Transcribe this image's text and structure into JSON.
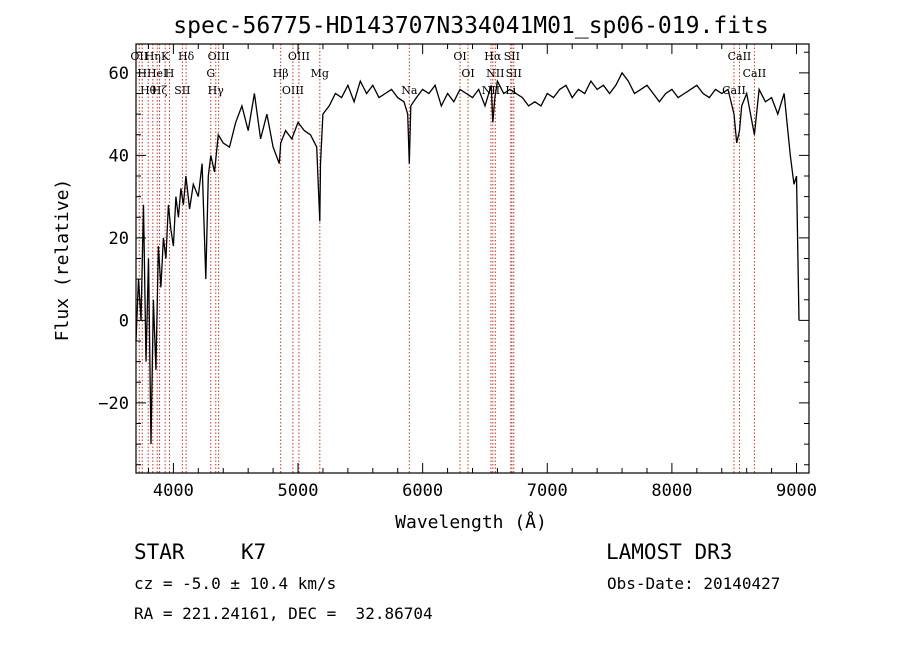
{
  "chart_data": {
    "type": "line",
    "title": "spec-56775-HD143707N334041M01_sp06-019.fits",
    "xlabel": "Wavelength (Å)",
    "ylabel": "Flux (relative)",
    "xlim": [
      3700,
      9100
    ],
    "ylim": [
      -37,
      67
    ],
    "xticks": [
      4000,
      5000,
      6000,
      7000,
      8000,
      9000
    ],
    "yticks": [
      -20,
      0,
      20,
      40,
      60
    ],
    "grid": false,
    "series": [
      {
        "name": "flux",
        "color": "#000000",
        "x": [
          3700,
          3720,
          3740,
          3760,
          3780,
          3800,
          3820,
          3840,
          3860,
          3880,
          3900,
          3920,
          3940,
          3960,
          3980,
          4000,
          4020,
          4040,
          4060,
          4080,
          4100,
          4130,
          4160,
          4200,
          4230,
          4260,
          4280,
          4300,
          4330,
          4360,
          4400,
          4450,
          4500,
          4550,
          4600,
          4650,
          4700,
          4750,
          4800,
          4850,
          4861,
          4900,
          4950,
          5000,
          5050,
          5100,
          5150,
          5175,
          5180,
          5200,
          5250,
          5300,
          5350,
          5400,
          5450,
          5500,
          5550,
          5600,
          5650,
          5700,
          5750,
          5800,
          5850,
          5880,
          5893,
          5905,
          5950,
          6000,
          6050,
          6100,
          6150,
          6200,
          6250,
          6300,
          6350,
          6400,
          6450,
          6500,
          6550,
          6563,
          6580,
          6600,
          6650,
          6700,
          6750,
          6800,
          6850,
          6900,
          6950,
          7000,
          7050,
          7100,
          7150,
          7200,
          7250,
          7300,
          7350,
          7400,
          7450,
          7500,
          7550,
          7600,
          7650,
          7700,
          7750,
          7800,
          7850,
          7900,
          7950,
          8000,
          8050,
          8100,
          8150,
          8200,
          8250,
          8300,
          8350,
          8400,
          8450,
          8498,
          8520,
          8542,
          8560,
          8600,
          8662,
          8700,
          8750,
          8800,
          8850,
          8900,
          8950,
          8980,
          9000,
          9020
        ],
        "values": [
          -5,
          10,
          0,
          28,
          -10,
          15,
          -30,
          5,
          -12,
          18,
          8,
          20,
          15,
          28,
          22,
          18,
          30,
          25,
          32,
          28,
          35,
          27,
          33,
          30,
          38,
          10,
          35,
          40,
          36,
          45,
          43,
          42,
          48,
          52,
          46,
          55,
          44,
          50,
          42,
          38,
          43,
          46,
          44,
          48,
          46,
          45,
          42,
          24,
          38,
          50,
          52,
          55,
          54,
          57,
          53,
          58,
          55,
          57,
          54,
          55,
          56,
          54,
          53,
          50,
          38,
          52,
          54,
          56,
          55,
          57,
          52,
          55,
          53,
          56,
          55,
          54,
          56,
          52,
          57,
          48,
          54,
          58,
          55,
          56,
          55,
          54,
          52,
          53,
          52,
          55,
          54,
          56,
          57,
          54,
          56,
          55,
          58,
          56,
          57,
          55,
          57,
          60,
          58,
          55,
          56,
          57,
          55,
          53,
          55,
          56,
          54,
          55,
          56,
          57,
          55,
          54,
          56,
          55,
          56,
          50,
          43,
          46,
          52,
          55,
          45,
          56,
          53,
          54,
          50,
          55,
          40,
          33,
          35,
          0
        ]
      }
    ],
    "lines": [
      {
        "wave": 3726,
        "label": "OII"
      },
      {
        "wave": 3750,
        "label": "H"
      },
      {
        "wave": 3798,
        "label": "Hθ"
      },
      {
        "wave": 3835,
        "label": "Hη"
      },
      {
        "wave": 3870,
        "label": "HeI"
      },
      {
        "wave": 3889,
        "label": "Hζ"
      },
      {
        "wave": 3934,
        "label": "K"
      },
      {
        "wave": 3969,
        "label": "H"
      },
      {
        "wave": 4072,
        "label": "SII"
      },
      {
        "wave": 4102,
        "label": "Hδ"
      },
      {
        "wave": 4300,
        "label": "G"
      },
      {
        "wave": 4340,
        "label": "Hγ"
      },
      {
        "wave": 4363,
        "label": "OIII"
      },
      {
        "wave": 4861,
        "label": "Hβ"
      },
      {
        "wave": 4959,
        "label": "OIII"
      },
      {
        "wave": 5007,
        "label": "OIII"
      },
      {
        "wave": 5175,
        "label": "Mg"
      },
      {
        "wave": 5893,
        "label": "Na"
      },
      {
        "wave": 6300,
        "label": "OI"
      },
      {
        "wave": 6364,
        "label": "OI"
      },
      {
        "wave": 6548,
        "label": "NII"
      },
      {
        "wave": 6563,
        "label": "Hα"
      },
      {
        "wave": 6583,
        "label": "NII"
      },
      {
        "wave": 6707,
        "label": "Li"
      },
      {
        "wave": 6716,
        "label": "SII"
      },
      {
        "wave": 6731,
        "label": "SII"
      },
      {
        "wave": 8498,
        "label": "CaII"
      },
      {
        "wave": 8542,
        "label": "CaII"
      },
      {
        "wave": 8662,
        "label": "CaII"
      }
    ]
  },
  "info": {
    "object_class": "STAR",
    "subclass": "K7",
    "survey": "LAMOST DR3",
    "redshift": "cz = -5.0 ± 10.4 km/s",
    "obs_date": "Obs-Date: 20140427",
    "coords": "RA = 221.24161, DEC =  32.86704"
  }
}
